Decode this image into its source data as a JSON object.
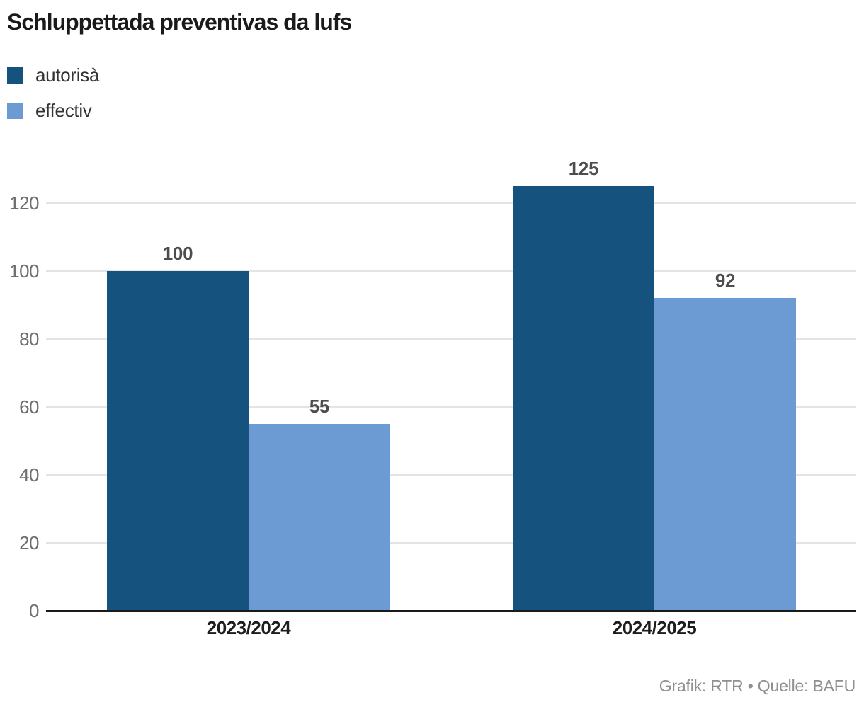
{
  "page": {
    "title": "Schluppettada preventivas da lufs",
    "footer": "Grafik: RTR • Quelle: BAFU"
  },
  "chart_data": {
    "type": "bar",
    "title": "Schluppettada preventivas da lufs",
    "categories": [
      "2023/2024",
      "2024/2025"
    ],
    "series": [
      {
        "name": "autorisà",
        "color": "#15527E",
        "values": [
          100,
          125
        ]
      },
      {
        "name": "effectiv",
        "color": "#6B9BD2",
        "values": [
          55,
          92
        ]
      }
    ],
    "value_labels": [
      {
        "series": "autorisà",
        "labels": [
          "100",
          "125"
        ]
      },
      {
        "series": "effectiv",
        "labels": [
          "55",
          "92"
        ]
      }
    ],
    "ylim": [
      0,
      130
    ],
    "yticks": [
      0,
      20,
      40,
      60,
      80,
      100,
      120
    ],
    "grid": true,
    "legend_position": "top-left",
    "source": "Grafik: RTR • Quelle: BAFU",
    "colors": {
      "bar_dark": "#15527E",
      "bar_light": "#6B9BD2",
      "gridline": "#e4e4e4",
      "axis_line": "#1a1a1a",
      "tick_text": "#6e6e6e",
      "value_text": "#4d4d4d",
      "category_text": "#1d1d1d",
      "footer_text": "#8f8f8f"
    }
  }
}
